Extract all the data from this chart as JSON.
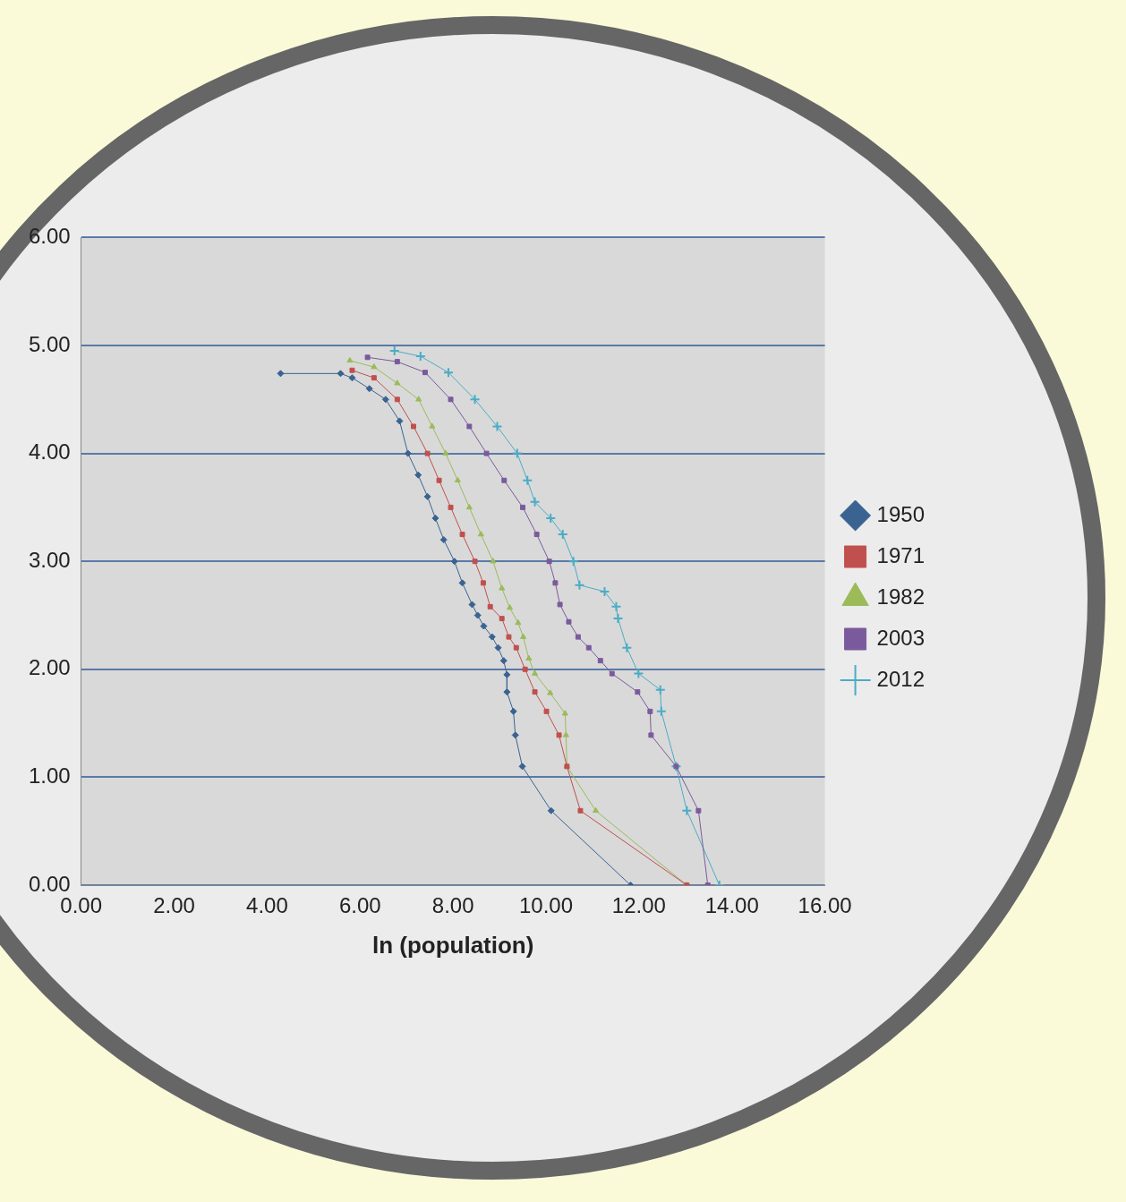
{
  "chart_data": {
    "type": "line",
    "xlabel": "ln (population)",
    "xlim": [
      0,
      16
    ],
    "ylim": [
      0,
      6
    ],
    "xticks": [
      {
        "value": 0,
        "label": "0.00"
      },
      {
        "value": 2,
        "label": "2.00"
      },
      {
        "value": 4,
        "label": "4.00"
      },
      {
        "value": 6,
        "label": "6.00"
      },
      {
        "value": 8,
        "label": "8.00"
      },
      {
        "value": 10,
        "label": "10.00"
      },
      {
        "value": 12,
        "label": "12.00"
      },
      {
        "value": 14,
        "label": "14.00"
      },
      {
        "value": 16,
        "label": "16.00"
      }
    ],
    "yticks": [
      {
        "value": 0,
        "label": "0.00"
      },
      {
        "value": 1,
        "label": "1.00"
      },
      {
        "value": 2,
        "label": "2.00"
      },
      {
        "value": 3,
        "label": "3.00"
      },
      {
        "value": 4,
        "label": "4.00"
      },
      {
        "value": 5,
        "label": "5.00"
      },
      {
        "value": 6,
        "label": "6.00"
      }
    ],
    "grid": "y",
    "legend": "right",
    "series": [
      {
        "name": "1950",
        "color": "#3a6391",
        "marker": "diamond",
        "x": [
          4.29,
          5.58,
          5.83,
          6.2,
          6.55,
          6.85,
          7.03,
          7.25,
          7.45,
          7.62,
          7.8,
          8.03,
          8.2,
          8.41,
          8.53,
          8.66,
          8.84,
          8.97,
          9.09,
          9.16,
          9.16,
          9.3,
          9.34,
          9.49,
          10.11,
          11.82
        ],
        "values": [
          4.74,
          4.74,
          4.7,
          4.6,
          4.5,
          4.3,
          4.0,
          3.8,
          3.6,
          3.4,
          3.2,
          3.0,
          2.8,
          2.6,
          2.5,
          2.4,
          2.3,
          2.2,
          2.08,
          1.95,
          1.79,
          1.61,
          1.39,
          1.1,
          0.69,
          0
        ]
      },
      {
        "name": "1971",
        "color": "#c0504d",
        "marker": "square",
        "x": [
          5.83,
          6.3,
          6.8,
          7.15,
          7.45,
          7.7,
          7.95,
          8.2,
          8.47,
          8.65,
          8.8,
          9.05,
          9.2,
          9.36,
          9.55,
          9.76,
          10.01,
          10.28,
          10.45,
          10.74,
          13.03
        ],
        "values": [
          4.77,
          4.7,
          4.5,
          4.25,
          4.0,
          3.75,
          3.5,
          3.25,
          3.0,
          2.8,
          2.58,
          2.47,
          2.3,
          2.2,
          2.0,
          1.79,
          1.61,
          1.39,
          1.1,
          0.69,
          0
        ]
      },
      {
        "name": "1982",
        "color": "#9bbb59",
        "marker": "triangle",
        "x": [
          5.78,
          6.3,
          6.8,
          7.26,
          7.55,
          7.84,
          8.1,
          8.35,
          8.6,
          8.86,
          9.05,
          9.22,
          9.4,
          9.51,
          9.63,
          9.76,
          10.09,
          10.41,
          10.43,
          10.45,
          11.07,
          13.03
        ],
        "values": [
          4.86,
          4.8,
          4.65,
          4.5,
          4.25,
          4.0,
          3.75,
          3.5,
          3.25,
          3.0,
          2.75,
          2.57,
          2.43,
          2.3,
          2.1,
          1.96,
          1.78,
          1.59,
          1.39,
          1.1,
          0.69,
          0
        ]
      },
      {
        "name": "2003",
        "color": "#7a5a9c",
        "marker": "square",
        "x": [
          6.16,
          6.8,
          7.4,
          7.95,
          8.35,
          8.72,
          9.1,
          9.5,
          9.8,
          10.07,
          10.2,
          10.3,
          10.49,
          10.69,
          10.92,
          11.17,
          11.42,
          11.97,
          12.24,
          12.26,
          12.8,
          13.28,
          13.48
        ],
        "values": [
          4.89,
          4.85,
          4.75,
          4.5,
          4.25,
          4.0,
          3.75,
          3.5,
          3.25,
          3.0,
          2.8,
          2.6,
          2.44,
          2.3,
          2.2,
          2.08,
          1.96,
          1.79,
          1.61,
          1.39,
          1.1,
          0.69,
          0
        ]
      },
      {
        "name": "2012",
        "color": "#4bacc6",
        "marker": "cross",
        "x": [
          6.74,
          7.3,
          7.9,
          8.47,
          8.95,
          9.38,
          9.6,
          9.76,
          10.1,
          10.36,
          10.59,
          10.72,
          11.26,
          11.51,
          11.55,
          11.74,
          11.99,
          12.46,
          12.48,
          12.8,
          13.03,
          13.73
        ],
        "values": [
          4.95,
          4.9,
          4.75,
          4.5,
          4.25,
          4.0,
          3.75,
          3.55,
          3.4,
          3.25,
          3.0,
          2.78,
          2.72,
          2.58,
          2.47,
          2.2,
          1.96,
          1.81,
          1.61,
          1.1,
          0.69,
          0
        ]
      }
    ]
  }
}
